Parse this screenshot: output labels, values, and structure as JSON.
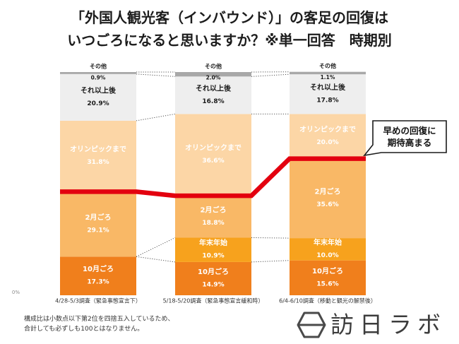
{
  "title": {
    "line1": "「外国人観光客（インバウンド）」の客足の回復は",
    "line2": "いつごろになると思いますか？※単一回答　時期別"
  },
  "chart_data": {
    "type": "bar",
    "stacked": true,
    "categories": [
      "4/28-5/3調査（緊急事態宣言下）",
      "5/18-5/20調査（緊急事態宣言緩和時）",
      "6/4-6/10調査（移動と観光の解禁後）"
    ],
    "series": [
      {
        "name": "10月ごろ",
        "values": [
          17.3,
          14.9,
          15.6
        ],
        "color": "#F07F1C",
        "label_color": "#FFFFFF"
      },
      {
        "name": "年末年始",
        "values": [
          null,
          10.9,
          10.0
        ],
        "color": "#F7A21D",
        "label_color": "#FFFFFF"
      },
      {
        "name": "2月ごろ",
        "values": [
          29.1,
          18.8,
          35.6
        ],
        "color": "#F9B866",
        "label_color": "#FFFFFF"
      },
      {
        "name": "オリンピックまで",
        "values": [
          31.8,
          36.6,
          20.0
        ],
        "color": "#FCD6A6",
        "label_color": "#FFFFFF"
      },
      {
        "name": "それ以上後",
        "values": [
          20.9,
          16.8,
          17.8
        ],
        "color": "#EEEEEE",
        "label_color": "#1A1A1A"
      },
      {
        "name": "その他",
        "values": [
          0.9,
          2.0,
          1.1
        ],
        "color": "#A8A8A8",
        "label_color": "#1A1A1A"
      }
    ],
    "value_unit": "%",
    "ylim": [
      0,
      100
    ],
    "yticks": [
      {
        "value": 0,
        "label": "0%"
      }
    ],
    "grid": false,
    "highlight_line": {
      "values": [
        46.4,
        44.6,
        61.2
      ],
      "color": "#E3000F"
    },
    "annotation": {
      "lines": [
        "早めの回復に",
        "期待高まる"
      ]
    }
  },
  "footnote": {
    "lines": [
      "構成比は小数点以下第2位を四捨五入しているため、",
      "合計しても必ずしも100とはなりません。"
    ]
  },
  "logo": {
    "text": "訪日ラボ",
    "icon": "hexagon-logo-icon"
  }
}
